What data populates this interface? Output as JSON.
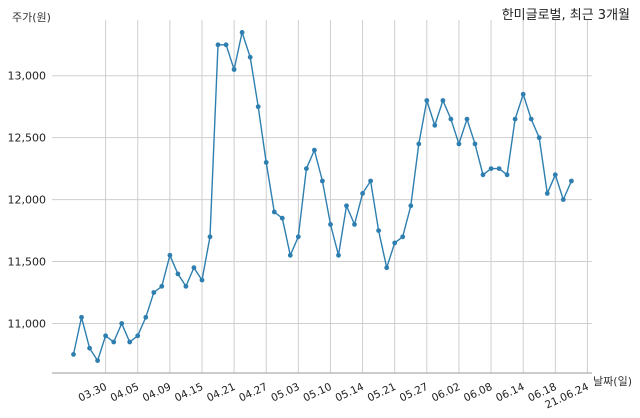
{
  "chart_data": {
    "type": "line",
    "title": "한미글로벌, 최근 3개월",
    "ylabel": "주가(원)",
    "xlabel": "날짜(일)",
    "ylim": [
      10600,
      13450
    ],
    "yticks": [
      11000,
      11500,
      12000,
      12500,
      13000
    ],
    "ytick_labels": [
      "11,000",
      "11,500",
      "12,000",
      "12,500",
      "13,000"
    ],
    "grid": true,
    "x_tick_labels": [
      "03.30",
      "04.05",
      "04.09",
      "04.15",
      "04.21",
      "04.27",
      "05.03",
      "05.10",
      "05.14",
      "05.21",
      "05.27",
      "06.02",
      "06.08",
      "06.14",
      "06.18",
      "21.06.24"
    ],
    "x_tick_positions": [
      4,
      8,
      12,
      16,
      20,
      24,
      28,
      32,
      36,
      40,
      44,
      48,
      52,
      56,
      60,
      64
    ],
    "series": [
      {
        "color": "#2e7fb0",
        "values": [
          10750,
          11050,
          10800,
          10700,
          10900,
          10850,
          11000,
          10850,
          10900,
          11050,
          11250,
          11300,
          11550,
          11400,
          11300,
          11450,
          11350,
          11700,
          13250,
          13250,
          13050,
          13350,
          13150,
          12750,
          12300,
          11900,
          11850,
          11550,
          11700,
          12250,
          12400,
          12150,
          11800,
          11550,
          11950,
          11800,
          12050,
          12150,
          11750,
          11450,
          11650,
          11700,
          11950,
          12450,
          12800,
          12600,
          12800,
          12650,
          12450,
          12650,
          12450,
          12200,
          12250,
          12250,
          12200,
          12650,
          12850,
          12650,
          12500,
          12050,
          12200,
          12000,
          12150
        ]
      }
    ]
  }
}
